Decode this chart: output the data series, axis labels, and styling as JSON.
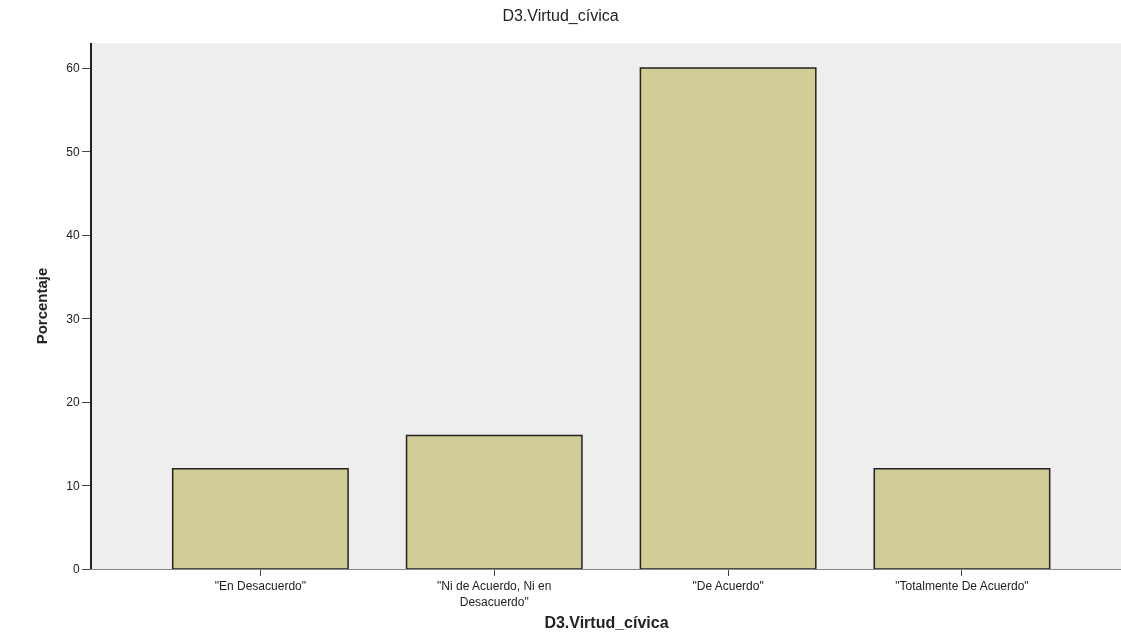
{
  "chart_data": {
    "type": "bar",
    "title": "D3.Virtud_cívica",
    "xlabel": "D3.Virtud_cívica",
    "ylabel": "Porcentaje",
    "categories": [
      "\"En Desacuerdo\"",
      "\"Ni de Acuerdo, Ni en Desacuerdo\"",
      "\"De Acuerdo\"",
      "\"Totalmente De Acuerdo\""
    ],
    "values": [
      12,
      16,
      60,
      12
    ],
    "color": "#d2cd96",
    "ylim": [
      0,
      63
    ],
    "yticks": [
      0,
      10,
      20,
      30,
      40,
      50,
      60
    ]
  }
}
